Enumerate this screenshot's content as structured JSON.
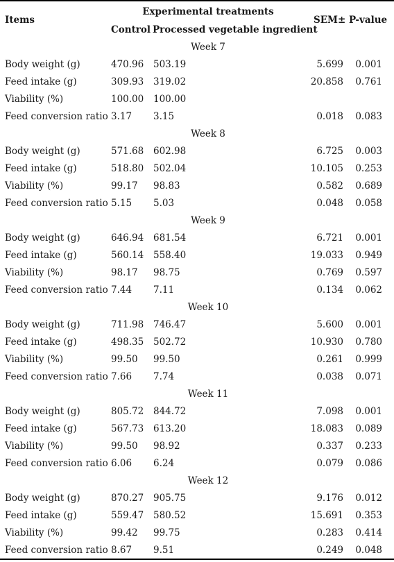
{
  "header": {
    "items": "Items",
    "experimental_treatments": "Experimental treatments",
    "control": "Control",
    "pvi": "Processed vegetable ingredient",
    "sem": "SEM±",
    "pvalue": "P-value"
  },
  "weeks": [
    {
      "label": "Week 7",
      "rows": [
        {
          "item": "Body weight (g)",
          "control": "470.96",
          "pvi": "503.19",
          "sem": "5.699",
          "p": "0.001"
        },
        {
          "item": "Feed intake (g)",
          "control": "309.93",
          "pvi": "319.02",
          "sem": "20.858",
          "p": "0.761"
        },
        {
          "item": "Viability (%)",
          "control": "100.00",
          "pvi": "100.00",
          "sem": "",
          "p": ""
        },
        {
          "item": "Feed conversion ratio",
          "control": "3.17",
          "pvi": "3.15",
          "sem": "0.018",
          "p": "0.083"
        }
      ]
    },
    {
      "label": "Week 8",
      "rows": [
        {
          "item": "Body weight (g)",
          "control": "571.68",
          "pvi": "602.98",
          "sem": "6.725",
          "p": "0.003"
        },
        {
          "item": "Feed intake (g)",
          "control": "518.80",
          "pvi": "502.04",
          "sem": "10.105",
          "p": "0.253"
        },
        {
          "item": "Viability (%)",
          "control": "99.17",
          "pvi": "98.83",
          "sem": "0.582",
          "p": "0.689"
        },
        {
          "item": "Feed conversion ratio",
          "control": "5.15",
          "pvi": "5.03",
          "sem": "0.048",
          "p": "0.058"
        }
      ]
    },
    {
      "label": "Week 9",
      "rows": [
        {
          "item": "Body weight (g)",
          "control": "646.94",
          "pvi": "681.54",
          "sem": "6.721",
          "p": "0.001"
        },
        {
          "item": "Feed intake (g)",
          "control": "560.14",
          "pvi": "558.40",
          "sem": "19.033",
          "p": "0.949"
        },
        {
          "item": "Viability (%)",
          "control": "98.17",
          "pvi": "98.75",
          "sem": "0.769",
          "p": "0.597"
        },
        {
          "item": "Feed conversion ratio",
          "control": "7.44",
          "pvi": "7.11",
          "sem": "0.134",
          "p": "0.062"
        }
      ]
    },
    {
      "label": "Week 10",
      "rows": [
        {
          "item": "Body weight (g)",
          "control": "711.98",
          "pvi": "746.47",
          "sem": "5.600",
          "p": "0.001"
        },
        {
          "item": "Feed intake (g)",
          "control": "498.35",
          "pvi": "502.72",
          "sem": "10.930",
          "p": "0.780"
        },
        {
          "item": "Viability (%)",
          "control": "99.50",
          "pvi": "99.50",
          "sem": "0.261",
          "p": "0.999"
        },
        {
          "item": "Feed conversion ratio",
          "control": "7.66",
          "pvi": "7.74",
          "sem": "0.038",
          "p": "0.071"
        }
      ]
    },
    {
      "label": "Week 11",
      "rows": [
        {
          "item": "Body weight (g)",
          "control": "805.72",
          "pvi": "844.72",
          "sem": "7.098",
          "p": "0.001"
        },
        {
          "item": "Feed intake (g)",
          "control": "567.73",
          "pvi": "613.20",
          "sem": "18.083",
          "p": "0.089"
        },
        {
          "item": "Viability (%)",
          "control": "99.50",
          "pvi": "98.92",
          "sem": "0.337",
          "p": "0.233"
        },
        {
          "item": "Feed conversion ratio",
          "control": "6.06",
          "pvi": "6.24",
          "sem": "0.079",
          "p": "0.086"
        }
      ]
    },
    {
      "label": "Week 12",
      "rows": [
        {
          "item": "Body weight (g)",
          "control": "870.27",
          "pvi": "905.75",
          "sem": "9.176",
          "p": "0.012"
        },
        {
          "item": "Feed intake (g)",
          "control": "559.47",
          "pvi": "580.52",
          "sem": "15.691",
          "p": "0.353"
        },
        {
          "item": "Viability (%)",
          "control": "99.42",
          "pvi": "99.75",
          "sem": "0.283",
          "p": "0.414"
        },
        {
          "item": "Feed conversion ratio",
          "control": "8.67",
          "pvi": "9.51",
          "sem": "0.249",
          "p": "0.048"
        }
      ]
    }
  ]
}
